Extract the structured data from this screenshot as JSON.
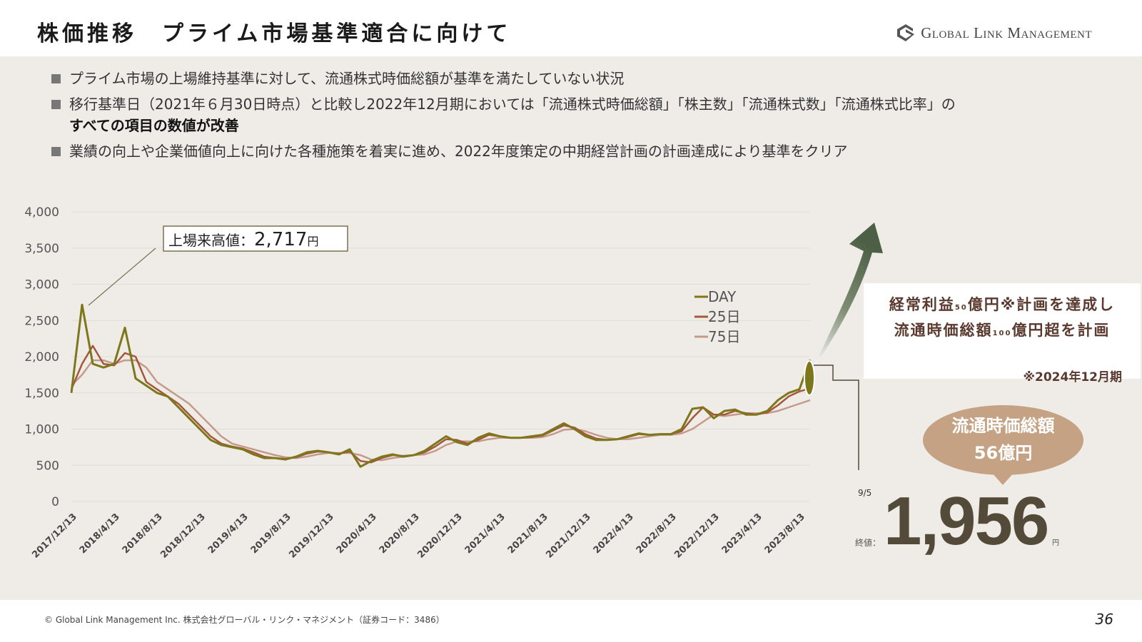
{
  "header": {
    "title": "株価推移　プライム市場基準適合に向けて",
    "logo_text": "Global Link Management"
  },
  "bullets": [
    {
      "text": "プライム市場の上場維持基準に対して、流通株式時価総額が基準を満たしていない状況"
    },
    {
      "text": "移行基準日（2021年６月30日時点）と比較し2022年12月期においては「流通株式時価総額」「株主数」「流通株式数」「流通株式比率」の",
      "bold": "すべての項目の数値が改善"
    },
    {
      "text": "業績の向上や企業価値向上に向けた各種施策を着実に進め、2022年度策定の中期経営計画の計画達成により基準をクリア"
    }
  ],
  "chart_data": {
    "type": "line",
    "ylim": [
      0,
      4000
    ],
    "yticks": [
      "0",
      "500",
      "1,000",
      "1,500",
      "2,000",
      "2,500",
      "3,000",
      "3,500",
      "4,000"
    ],
    "xticks": [
      "2017/12/13",
      "2018/4/13",
      "2018/8/13",
      "2018/12/13",
      "2019/4/13",
      "2019/8/13",
      "2019/12/13",
      "2020/4/13",
      "2020/8/13",
      "2020/12/13",
      "2021/4/13",
      "2021/8/13",
      "2021/12/13",
      "2022/4/13",
      "2022/8/13",
      "2022/12/13",
      "2023/4/13",
      "2023/8/13"
    ],
    "x_start": "2017/12",
    "x_step": "monthly",
    "series": [
      {
        "name": "DAY",
        "color": "#7d771b",
        "values": [
          1500,
          2717,
          1900,
          1850,
          1900,
          2400,
          1700,
          1600,
          1500,
          1450,
          1300,
          1150,
          1000,
          850,
          780,
          750,
          720,
          650,
          600,
          600,
          580,
          620,
          680,
          700,
          680,
          650,
          720,
          480,
          560,
          620,
          650,
          620,
          640,
          700,
          800,
          900,
          820,
          780,
          880,
          940,
          900,
          880,
          880,
          900,
          920,
          1000,
          1080,
          1000,
          900,
          850,
          850,
          860,
          900,
          940,
          920,
          930,
          930,
          1000,
          1280,
          1300,
          1150,
          1250,
          1270,
          1200,
          1200,
          1250,
          1400,
          1500,
          1550,
          1956
        ]
      },
      {
        "name": "25日",
        "color": "#a3583c",
        "values": [
          1550,
          1900,
          2150,
          1900,
          1880,
          2050,
          2000,
          1650,
          1550,
          1450,
          1350,
          1200,
          1050,
          900,
          800,
          760,
          730,
          680,
          620,
          600,
          590,
          610,
          660,
          690,
          680,
          660,
          690,
          560,
          540,
          600,
          640,
          630,
          640,
          680,
          760,
          860,
          850,
          800,
          850,
          920,
          900,
          880,
          880,
          890,
          910,
          980,
          1050,
          1020,
          930,
          870,
          850,
          860,
          890,
          930,
          920,
          930,
          930,
          970,
          1150,
          1300,
          1200,
          1200,
          1250,
          1220,
          1200,
          1230,
          1330,
          1450,
          1520,
          1560
        ]
      },
      {
        "name": "75日",
        "color": "#c49a8a",
        "values": [
          1600,
          1750,
          1950,
          1950,
          1900,
          1950,
          1950,
          1850,
          1650,
          1550,
          1450,
          1350,
          1200,
          1050,
          900,
          800,
          760,
          720,
          680,
          640,
          610,
          600,
          620,
          650,
          670,
          670,
          670,
          640,
          580,
          570,
          600,
          620,
          640,
          650,
          700,
          780,
          830,
          830,
          830,
          860,
          880,
          880,
          880,
          880,
          890,
          930,
          990,
          1000,
          970,
          920,
          880,
          860,
          860,
          880,
          900,
          920,
          920,
          940,
          1000,
          1100,
          1200,
          1180,
          1200,
          1220,
          1220,
          1220,
          1250,
          1300,
          1350,
          1400
        ]
      }
    ],
    "legend_position": "top-right",
    "annotation": {
      "label": "上場来高値：",
      "value": "2,717",
      "unit": "円"
    }
  },
  "target": {
    "line1_a": "経常利益",
    "line1_sub": "50",
    "line1_b": "億円※計画を達成し",
    "line2_a": "流通時価総額",
    "line2_sub": "100",
    "line2_b": "億円超を計画",
    "note": "※2024年12月期"
  },
  "bubble": {
    "line1": "流通時価総額",
    "line2": "56億円"
  },
  "close": {
    "date": "9/5",
    "label": "終値：",
    "value": "1,956",
    "unit": "円"
  },
  "footer": {
    "copyright": "© Global Link Management Inc. 株式会社グローバル・リンク・マネジメント（証券コード：3486）",
    "page": "36"
  },
  "colors": {
    "background": "#efece8",
    "arrow": "#4d6045",
    "text_brown": "#5a3a2e"
  }
}
